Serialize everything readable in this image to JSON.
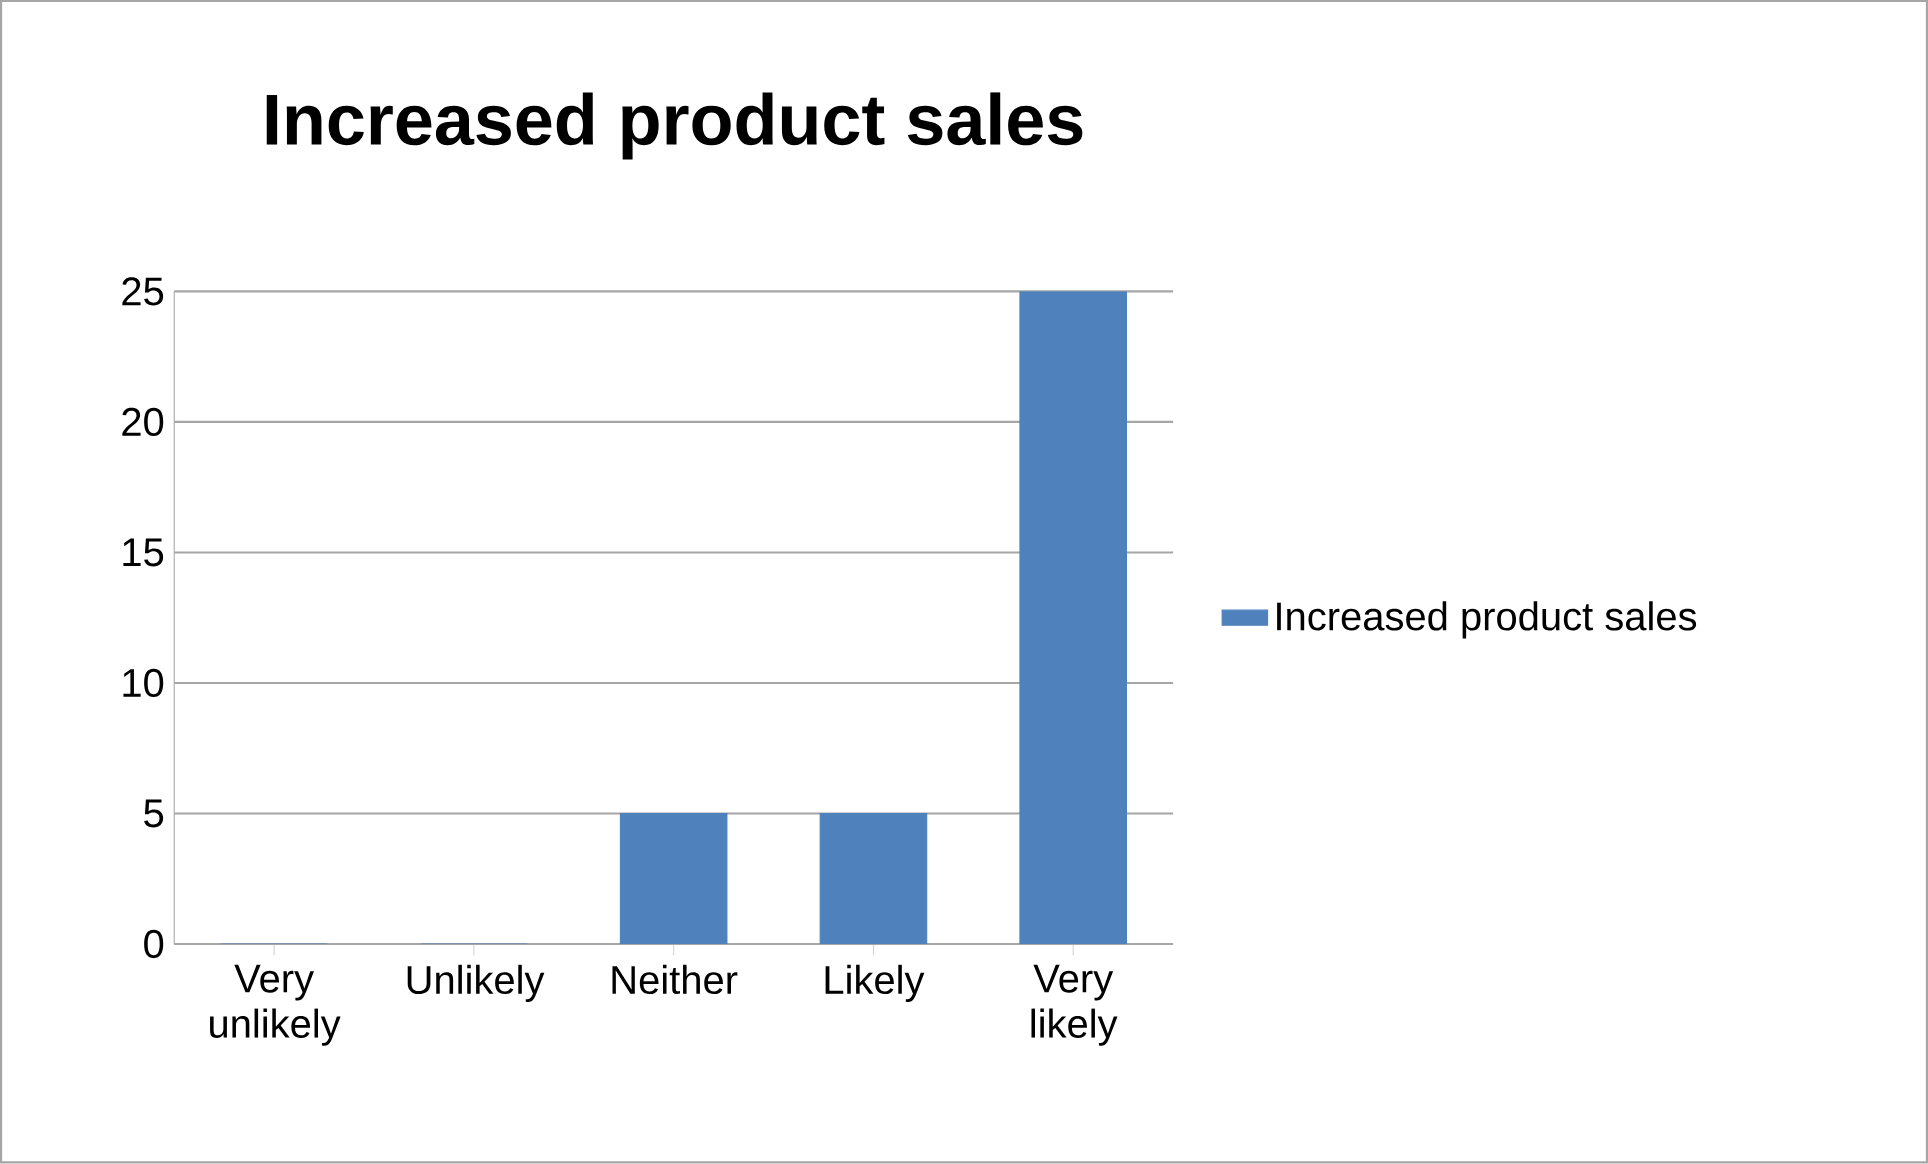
{
  "chart_data": {
    "type": "bar",
    "title": "Increased product sales",
    "categories": [
      "Very unlikely",
      "Unlikely",
      "Neither",
      "Likely",
      "Very likely"
    ],
    "series": [
      {
        "name": "Increased product sales",
        "color": "#4f81bd",
        "values": [
          0,
          0,
          5,
          5,
          25
        ]
      }
    ],
    "ylim": [
      0,
      25
    ],
    "yticks": [
      0,
      5,
      10,
      15,
      20,
      25
    ],
    "grid": "y",
    "legend": "right"
  }
}
